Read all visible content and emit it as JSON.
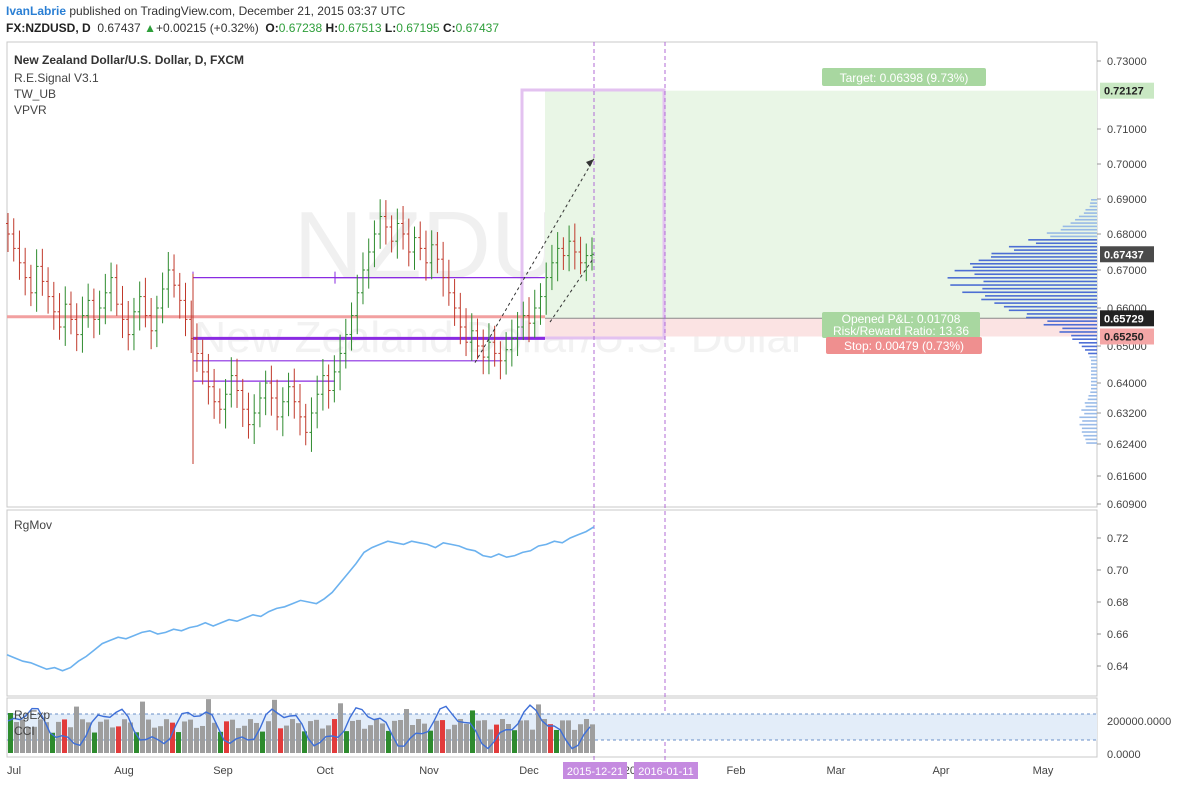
{
  "header": {
    "author": "IvanLabrie",
    "published": " published on TradingView.com, December 21, 2015 03:37 UTC",
    "symbol": "FX:NZDUSD, D",
    "price": "0.67437",
    "change_arrow": "▲",
    "change": "+0.00215 (+0.32%)",
    "o_label": "O:",
    "o_value": "0.67238",
    "h_label": "H:",
    "h_value": "0.67513",
    "l_label": "L:",
    "l_value": "0.67195",
    "c_label": "C:",
    "c_value": "0.67437"
  },
  "main_pane": {
    "title": "New Zealand Dollar/U.S. Dollar, D, FXCM",
    "indicators": [
      "R.E.Signal V3.1",
      "TW_UB",
      "VPVR"
    ],
    "watermark_main": "NZDUSD, D",
    "watermark_sub": "New Zealand Dollar/U.S. Dollar",
    "price_axis_ticks": [
      "0.73000",
      "0.71000",
      "0.70000",
      "0.69000",
      "0.68000",
      "0.67000",
      "0.66000",
      "0.65000",
      "0.64000",
      "0.63200",
      "0.62400",
      "0.61600",
      "0.60900"
    ],
    "badges": [
      {
        "label": "0.72127",
        "bg": "#c9e8c3",
        "fg": "#222"
      },
      {
        "label": "0.67437",
        "bg": "#4a4a4a",
        "fg": "#ffffff"
      },
      {
        "label": "0.65729",
        "bg": "#222222",
        "fg": "#ffffff"
      },
      {
        "label": "0.65250",
        "bg": "#f4a6a6",
        "fg": "#222"
      }
    ],
    "target_label": "Target: 0.06398 (9.73%)",
    "position_label_1": "Opened P&L: 0.01708",
    "position_label_2": "Risk/Reward Ratio: 13.36",
    "stop_label": "Stop: 0.00479 (0.73%)"
  },
  "rgmov_pane": {
    "title": "RgMov",
    "ticks": [
      "0.72",
      "0.70",
      "0.68",
      "0.66",
      "0.64"
    ]
  },
  "rgexp_pane": {
    "title_1": "RgExp",
    "title_2": "CCI",
    "ticks": [
      "200000.0000",
      "0.0000"
    ]
  },
  "time_axis": {
    "labels": [
      "Jul",
      "Aug",
      "Sep",
      "Oct",
      "Nov",
      "Dec",
      "2016",
      "Feb",
      "Mar",
      "Apr",
      "May"
    ],
    "highlight_1": "2015-12-21",
    "highlight_2": "2016-01-11"
  },
  "colors": {
    "bull": "#2e8b2e",
    "bear": "#c0392b",
    "level_line": "#8a2be2",
    "profile": "#3b5fd1",
    "rgmov_line": "#6cb2ef",
    "target_zone": "#e9f6e6",
    "stop_zone": "#fbe3e3"
  },
  "chart_data": {
    "type": "candlestick",
    "title": "New Zealand Dollar/U.S. Dollar, D, FXCM",
    "period_labels": [
      "Jul",
      "Aug",
      "Sep",
      "Oct",
      "Nov",
      "Dec"
    ],
    "close": [
      0.68,
      0.676,
      0.672,
      0.668,
      0.664,
      0.671,
      0.667,
      0.663,
      0.659,
      0.655,
      0.661,
      0.657,
      0.653,
      0.658,
      0.662,
      0.657,
      0.66,
      0.664,
      0.668,
      0.661,
      0.657,
      0.653,
      0.659,
      0.663,
      0.658,
      0.654,
      0.66,
      0.665,
      0.67,
      0.666,
      0.662,
      0.657,
      0.652,
      0.648,
      0.643,
      0.639,
      0.635,
      0.633,
      0.637,
      0.642,
      0.638,
      0.633,
      0.629,
      0.632,
      0.636,
      0.64,
      0.636,
      0.631,
      0.635,
      0.639,
      0.635,
      0.631,
      0.627,
      0.632,
      0.637,
      0.642,
      0.638,
      0.643,
      0.648,
      0.653,
      0.658,
      0.664,
      0.67,
      0.675,
      0.68,
      0.685,
      0.682,
      0.678,
      0.683,
      0.68,
      0.675,
      0.679,
      0.676,
      0.672,
      0.677,
      0.673,
      0.668,
      0.664,
      0.66,
      0.655,
      0.651,
      0.654,
      0.65,
      0.647,
      0.651,
      0.648,
      0.646,
      0.649,
      0.652,
      0.655,
      0.658,
      0.656,
      0.66,
      0.663,
      0.668,
      0.672,
      0.676,
      0.674,
      0.678,
      0.675,
      0.672,
      0.674,
      0.67437
    ],
    "series": [
      {
        "name": "RgMov",
        "values": [
          0.647,
          0.645,
          0.643,
          0.642,
          0.64,
          0.638,
          0.639,
          0.637,
          0.639,
          0.643,
          0.646,
          0.65,
          0.654,
          0.656,
          0.658,
          0.657,
          0.659,
          0.661,
          0.662,
          0.66,
          0.661,
          0.663,
          0.662,
          0.664,
          0.665,
          0.667,
          0.665,
          0.667,
          0.669,
          0.668,
          0.67,
          0.672,
          0.671,
          0.674,
          0.676,
          0.677,
          0.679,
          0.681,
          0.68,
          0.679,
          0.682,
          0.686,
          0.692,
          0.698,
          0.704,
          0.711,
          0.714,
          0.716,
          0.718,
          0.717,
          0.716,
          0.718,
          0.717,
          0.716,
          0.714,
          0.717,
          0.716,
          0.715,
          0.713,
          0.712,
          0.709,
          0.708,
          0.71,
          0.708,
          0.709,
          0.711,
          0.712,
          0.715,
          0.716,
          0.718,
          0.717,
          0.72,
          0.722,
          0.724,
          0.727
        ]
      }
    ],
    "levels": [
      0.668,
      0.6573,
      0.652,
      0.646,
      0.6405
    ],
    "target": 0.72127,
    "entry": 0.65729,
    "stop": 0.6525,
    "last": 0.67437
  }
}
